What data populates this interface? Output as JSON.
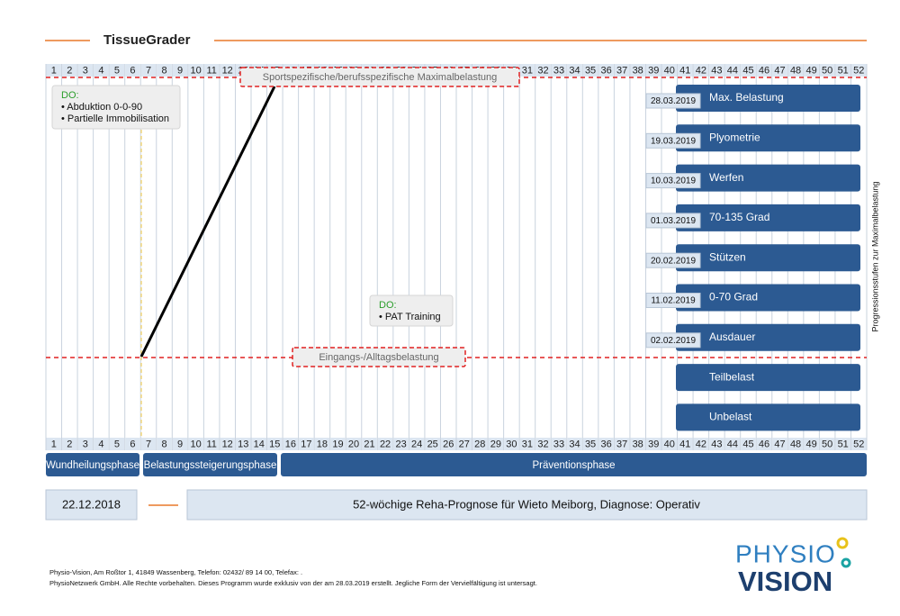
{
  "header": {
    "title": "TissueGrader"
  },
  "weeks": [
    1,
    2,
    3,
    4,
    5,
    6,
    7,
    8,
    9,
    10,
    11,
    12,
    13,
    14,
    15,
    16,
    17,
    18,
    19,
    20,
    21,
    22,
    23,
    24,
    25,
    26,
    27,
    28,
    29,
    30,
    31,
    32,
    33,
    34,
    35,
    36,
    37,
    38,
    39,
    40,
    41,
    42,
    43,
    44,
    45,
    46,
    47,
    48,
    49,
    50,
    51,
    52
  ],
  "levels": {
    "top": "Sportspezifische/berufsspezifische Maximalbelastung",
    "bottom": "Eingangs-/Alltagsbelastung"
  },
  "notes": [
    {
      "heading": "DO:",
      "items": [
        "• Abduktion 0-0-90",
        "• Partielle Immobilisation"
      ]
    },
    {
      "heading": "DO:",
      "items": [
        "• PAT Training"
      ]
    }
  ],
  "progression": {
    "title": "Progressionsstufen zur Maximalbelastung",
    "steps": [
      {
        "label": "Max. Belastung",
        "date": "28.03.2019"
      },
      {
        "label": "Plyometrie",
        "date": "19.03.2019"
      },
      {
        "label": "Werfen",
        "date": "10.03.2019"
      },
      {
        "label": "70-135 Grad",
        "date": "01.03.2019"
      },
      {
        "label": "Stützen",
        "date": "20.02.2019"
      },
      {
        "label": "0-70 Grad",
        "date": "11.02.2019"
      },
      {
        "label": "Ausdauer",
        "date": "02.02.2019"
      },
      {
        "label": "Teilbelast"
      },
      {
        "label": "Unbelast"
      }
    ]
  },
  "phases": [
    "Wundheilungsphase",
    "Belastungssteigerungsphase",
    "Präventionsphase"
  ],
  "summary": {
    "date": "22.12.2018",
    "text": "52-wöchige Reha-Prognose für Wieto Meiborg, Diagnose: Operativ"
  },
  "footer": [
    "Physio-Vision, Am Roßtor 1, 41849 Wassenberg, Telefon: 02432/ 89 14 00, Telefax: .",
    "PhysioNetzwerk GmbH. Alle Rechte vorbehalten. Dieses Programm wurde exklusiv von der  am 28.03.2019 erstellt. Jegliche Form der Vervielfältigung ist untersagt."
  ],
  "logo": {
    "top": "PHYSIO",
    "bottom": "VISION"
  }
}
